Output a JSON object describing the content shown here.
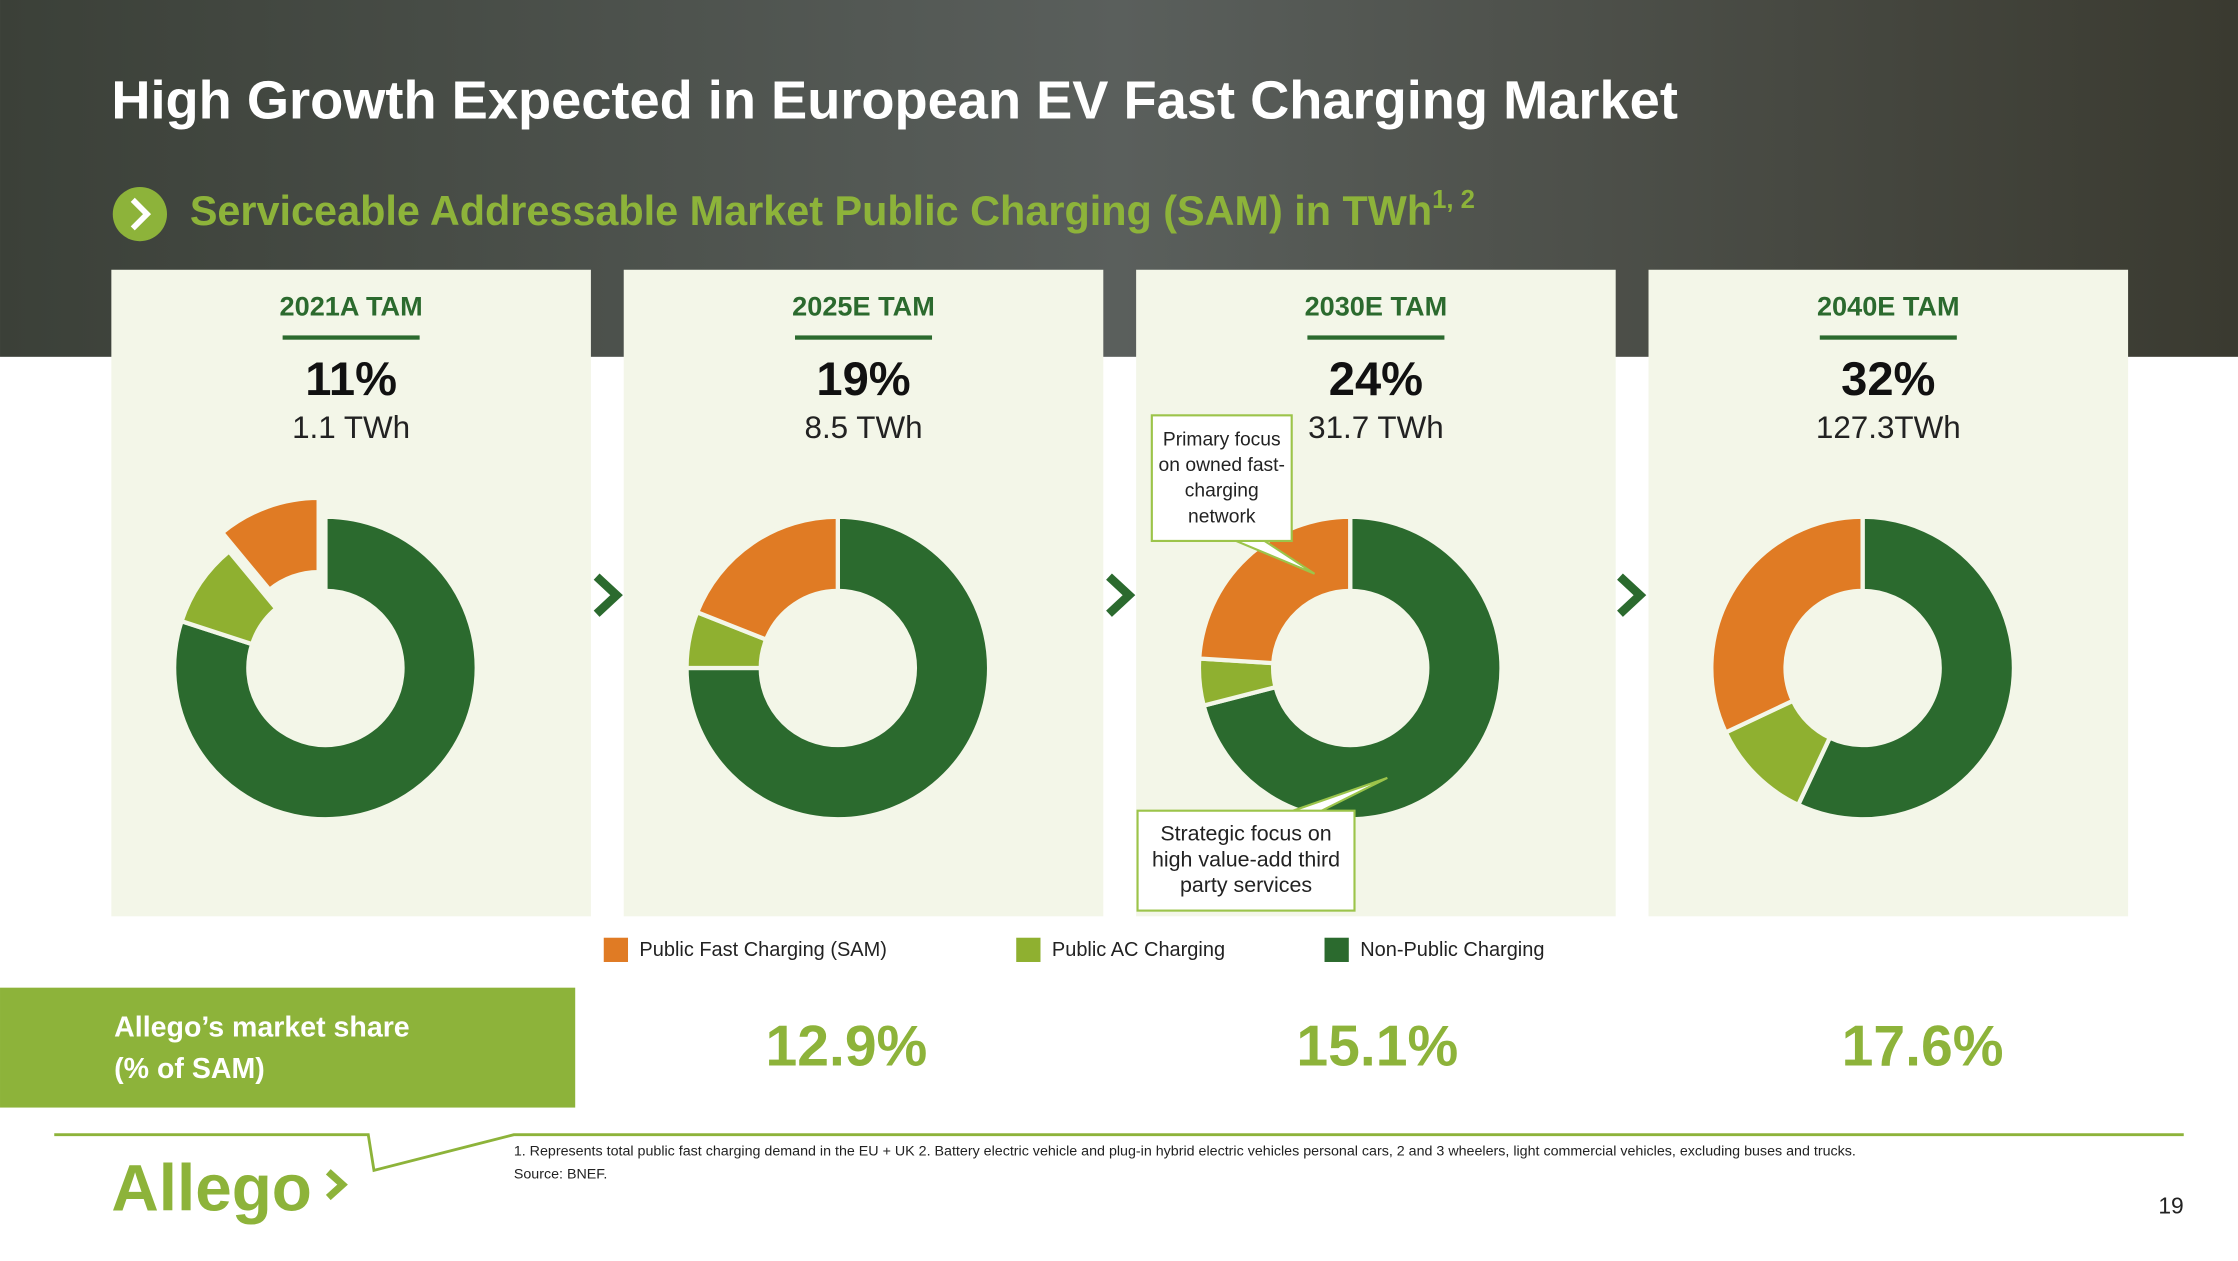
{
  "header": {
    "title": "High Growth Expected in European EV Fast Charging Market",
    "subtitle": "Serviceable Addressable Market Public Charging (SAM) in TWh",
    "subtitle_sup": "1, 2"
  },
  "legend": [
    {
      "name": "Public Fast Charging (SAM)",
      "color": "#e07b24"
    },
    {
      "name": "Public AC Charging",
      "color": "#8fb030"
    },
    {
      "name": "Non-Public Charging",
      "color": "#2b6a2e"
    }
  ],
  "chart_data": [
    {
      "type": "donut",
      "title": "2021A TAM",
      "values": [
        11,
        9,
        80
      ],
      "value_labels": [
        "11%",
        null,
        null
      ],
      "total": "1.1 TWh",
      "explode": 0
    },
    {
      "type": "donut",
      "title": "2025E TAM",
      "values": [
        19,
        6,
        75
      ],
      "value_labels": [
        "19%",
        null,
        null
      ],
      "total": "8.5 TWh"
    },
    {
      "type": "donut",
      "title": "2030E TAM",
      "values": [
        24,
        5,
        71
      ],
      "value_labels": [
        "24%",
        null,
        null
      ],
      "total": "31.7 TWh",
      "annotations": [
        "Primary focus on owned fast-charging network",
        "Strategic focus on high value-add third party services"
      ]
    },
    {
      "type": "donut",
      "title": "2040E TAM",
      "values": [
        32,
        11,
        57
      ],
      "value_labels": [
        "32%",
        null,
        null
      ],
      "total": "127.3TWh"
    }
  ],
  "market_share": {
    "label": [
      "Allego’s market share",
      "(% of SAM)"
    ],
    "values": [
      "12.9%",
      "15.1%",
      "17.6%"
    ]
  },
  "footer": {
    "notes": [
      "1. Represents total public fast charging demand in the EU + UK 2. Battery electric vehicle and plug-in hybrid electric vehicles personal cars, 2 and 3 wheelers, light commercial vehicles, excluding buses and trucks.",
      "Source: BNEF."
    ],
    "logo": "Allego",
    "page": "19"
  }
}
